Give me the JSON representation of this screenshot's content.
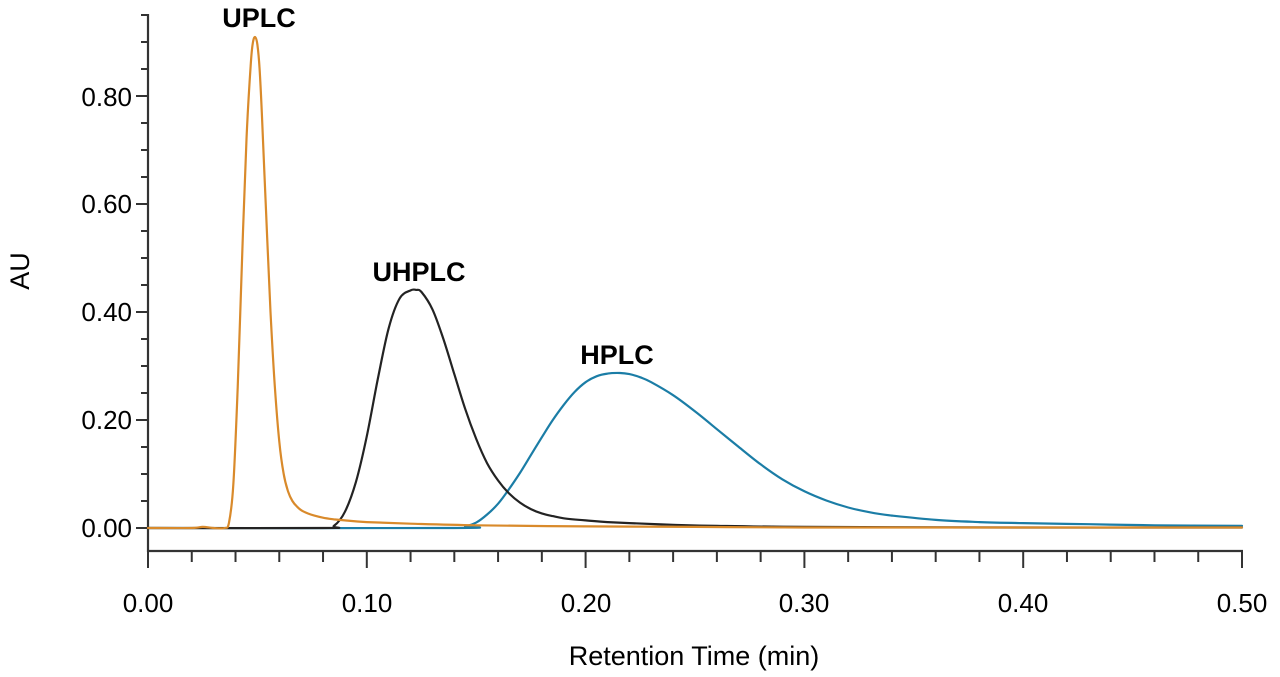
{
  "chart_data": {
    "type": "line",
    "title": "",
    "xlabel": "Retention Time (min)",
    "ylabel": "AU",
    "xlim": [
      0.0,
      0.5
    ],
    "ylim": [
      -0.04,
      0.95
    ],
    "x_ticks": [
      "0.00",
      "0.10",
      "0.20",
      "0.30",
      "0.40",
      "0.50"
    ],
    "y_ticks": [
      "0.00",
      "0.20",
      "0.40",
      "0.60",
      "0.80"
    ],
    "grid": false,
    "legend": "none (peaks labeled directly)",
    "annotations": [
      {
        "text": "UPLC",
        "x": 0.0494,
        "y": 0.909
      },
      {
        "text": "UHPLC",
        "x": 0.1225,
        "y": 0.441
      },
      {
        "text": "HPLC",
        "x": 0.2157,
        "y": 0.287
      }
    ],
    "series": [
      {
        "name": "UPLC",
        "color": "#D98A2B",
        "peak_time": 0.049,
        "peak_au": 0.91,
        "x": [
          0.0,
          0.02,
          0.025,
          0.03,
          0.035,
          0.037,
          0.039,
          0.041,
          0.043,
          0.045,
          0.047,
          0.048,
          0.049,
          0.05,
          0.051,
          0.052,
          0.054,
          0.056,
          0.058,
          0.06,
          0.062,
          0.064,
          0.066,
          0.068,
          0.07,
          0.073,
          0.076,
          0.08,
          0.085,
          0.09,
          0.1,
          0.12,
          0.15,
          0.2,
          0.25,
          0.3,
          0.4,
          0.5
        ],
        "y": [
          0.0,
          0.0,
          0.002,
          0.0,
          0.0,
          0.01,
          0.08,
          0.26,
          0.5,
          0.72,
          0.86,
          0.9,
          0.909,
          0.895,
          0.85,
          0.77,
          0.58,
          0.4,
          0.26,
          0.16,
          0.1,
          0.068,
          0.05,
          0.04,
          0.033,
          0.027,
          0.023,
          0.019,
          0.016,
          0.014,
          0.011,
          0.008,
          0.005,
          0.003,
          0.002,
          0.001,
          0.001,
          0.001
        ]
      },
      {
        "name": "UHPLC",
        "color": "#232323",
        "peak_time": 0.1225,
        "peak_au": 0.44,
        "x": [
          0.0,
          0.08,
          0.085,
          0.09,
          0.095,
          0.1,
          0.105,
          0.11,
          0.115,
          0.12,
          0.1225,
          0.125,
          0.13,
          0.135,
          0.14,
          0.145,
          0.15,
          0.155,
          0.16,
          0.165,
          0.17,
          0.175,
          0.18,
          0.185,
          0.19,
          0.2,
          0.21,
          0.22,
          0.24,
          0.26,
          0.3,
          0.4,
          0.5
        ],
        "y": [
          0.0,
          0.0,
          0.004,
          0.03,
          0.085,
          0.17,
          0.275,
          0.37,
          0.425,
          0.44,
          0.441,
          0.437,
          0.405,
          0.35,
          0.285,
          0.22,
          0.165,
          0.12,
          0.088,
          0.064,
          0.047,
          0.035,
          0.027,
          0.022,
          0.018,
          0.014,
          0.011,
          0.009,
          0.006,
          0.004,
          0.002,
          0.001,
          0.001
        ]
      },
      {
        "name": "HPLC",
        "color": "#1B7DA6",
        "peak_time": 0.2157,
        "peak_au": 0.287,
        "x": [
          0.0,
          0.14,
          0.145,
          0.15,
          0.155,
          0.16,
          0.165,
          0.17,
          0.175,
          0.18,
          0.185,
          0.19,
          0.195,
          0.2,
          0.205,
          0.21,
          0.2157,
          0.22,
          0.225,
          0.23,
          0.24,
          0.25,
          0.26,
          0.27,
          0.28,
          0.29,
          0.3,
          0.31,
          0.32,
          0.33,
          0.34,
          0.36,
          0.38,
          0.4,
          0.43,
          0.46,
          0.5
        ],
        "y": [
          0.0,
          0.0,
          0.003,
          0.01,
          0.025,
          0.045,
          0.072,
          0.102,
          0.135,
          0.168,
          0.2,
          0.228,
          0.252,
          0.27,
          0.281,
          0.286,
          0.287,
          0.285,
          0.279,
          0.27,
          0.246,
          0.216,
          0.183,
          0.15,
          0.118,
          0.09,
          0.068,
          0.051,
          0.038,
          0.029,
          0.023,
          0.015,
          0.011,
          0.009,
          0.007,
          0.005,
          0.004
        ]
      }
    ]
  }
}
